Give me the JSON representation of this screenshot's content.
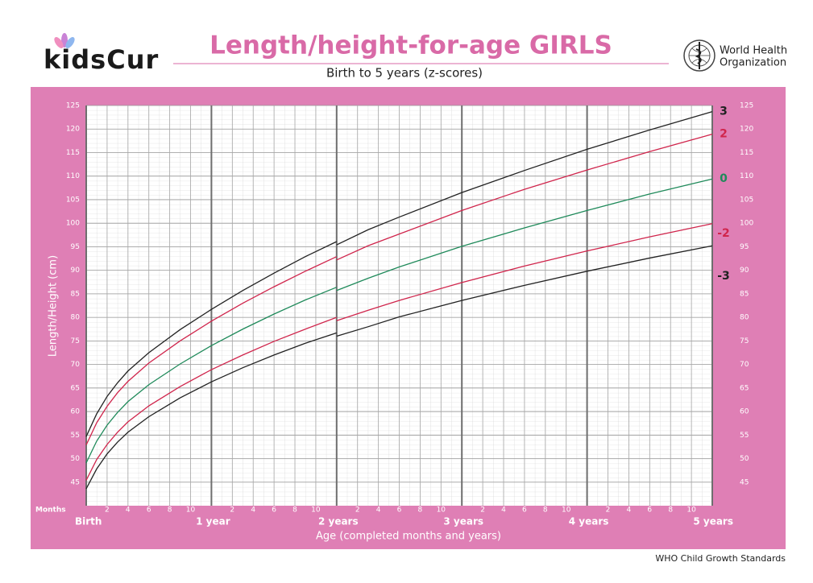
{
  "brand": "kidsCur",
  "organization": [
    "World Health",
    "Organization"
  ],
  "footer": "WHO Child Growth Standards",
  "chart_data": {
    "type": "line",
    "title": "Length/height-for-age GIRLS",
    "subtitle": "Birth to 5 years (z-scores)",
    "y_label": "Length/Height (cm)",
    "x_label": "Age (completed months and years)",
    "x_unit_label": "Months",
    "xlim": [
      0,
      60
    ],
    "ylim": [
      40,
      125
    ],
    "yticks": [
      45,
      50,
      55,
      60,
      65,
      70,
      75,
      80,
      85,
      90,
      95,
      100,
      105,
      110,
      115,
      120,
      125
    ],
    "xticks": [
      {
        "value": 2,
        "label": "2"
      },
      {
        "value": 4,
        "label": "4"
      },
      {
        "value": 6,
        "label": "6"
      },
      {
        "value": 8,
        "label": "8"
      },
      {
        "value": 10,
        "label": "10"
      },
      {
        "value": 14,
        "label": "2"
      },
      {
        "value": 16,
        "label": "4"
      },
      {
        "value": 18,
        "label": "6"
      },
      {
        "value": 20,
        "label": "8"
      },
      {
        "value": 22,
        "label": "10"
      },
      {
        "value": 26,
        "label": "2"
      },
      {
        "value": 28,
        "label": "4"
      },
      {
        "value": 30,
        "label": "6"
      },
      {
        "value": 32,
        "label": "8"
      },
      {
        "value": 34,
        "label": "10"
      },
      {
        "value": 38,
        "label": "2"
      },
      {
        "value": 40,
        "label": "4"
      },
      {
        "value": 42,
        "label": "6"
      },
      {
        "value": 44,
        "label": "8"
      },
      {
        "value": 46,
        "label": "10"
      },
      {
        "value": 50,
        "label": "2"
      },
      {
        "value": 52,
        "label": "4"
      },
      {
        "value": 54,
        "label": "6"
      },
      {
        "value": 56,
        "label": "8"
      },
      {
        "value": 58,
        "label": "10"
      }
    ],
    "year_ticks": [
      {
        "value": 0,
        "label": "Birth"
      },
      {
        "value": 12,
        "label": "1 year"
      },
      {
        "value": 24,
        "label": "2 years"
      },
      {
        "value": 36,
        "label": "3 years"
      },
      {
        "value": 48,
        "label": "4 years"
      },
      {
        "value": 60,
        "label": "5 years"
      }
    ],
    "grid": true,
    "x": [
      0,
      1,
      2,
      3,
      4,
      6,
      9,
      12,
      15,
      18,
      21,
      24,
      24,
      24,
      27,
      30,
      36,
      42,
      48,
      54,
      60
    ],
    "series": [
      {
        "name": "3",
        "color": "#222222",
        "values": [
          54.7,
          59.5,
          63.2,
          66.1,
          68.6,
          72.5,
          77.4,
          81.7,
          85.7,
          89.4,
          92.9,
          96.1,
          null,
          95.4,
          98.6,
          101.3,
          106.5,
          111.2,
          115.7,
          119.8,
          123.7
        ]
      },
      {
        "name": "2",
        "color": "#d0254c",
        "values": [
          52.9,
          57.6,
          61.1,
          64.0,
          66.4,
          70.3,
          75.0,
          79.2,
          83.0,
          86.5,
          89.8,
          92.9,
          null,
          92.2,
          95.2,
          97.7,
          102.7,
          107.2,
          111.3,
          115.2,
          118.9
        ]
      },
      {
        "name": "0",
        "color": "#1f8a5a",
        "values": [
          49.1,
          53.7,
          57.1,
          59.8,
          62.1,
          65.7,
          70.1,
          74.0,
          77.5,
          80.7,
          83.7,
          86.4,
          null,
          85.7,
          88.3,
          90.7,
          95.1,
          99.0,
          102.7,
          106.2,
          109.4
        ]
      },
      {
        "name": "-2",
        "color": "#d0254c",
        "values": [
          45.4,
          49.8,
          53.0,
          55.6,
          57.8,
          61.2,
          65.3,
          68.9,
          72.0,
          74.9,
          77.5,
          80.0,
          null,
          79.3,
          81.5,
          83.6,
          87.4,
          90.9,
          94.1,
          97.1,
          99.9
        ]
      },
      {
        "name": "-3",
        "color": "#222222",
        "values": [
          43.6,
          47.8,
          51.0,
          53.5,
          55.6,
          58.9,
          62.9,
          66.3,
          69.3,
          72.0,
          74.5,
          76.7,
          null,
          76.0,
          78.0,
          80.1,
          83.6,
          86.8,
          89.8,
          92.6,
          95.2
        ]
      }
    ]
  }
}
